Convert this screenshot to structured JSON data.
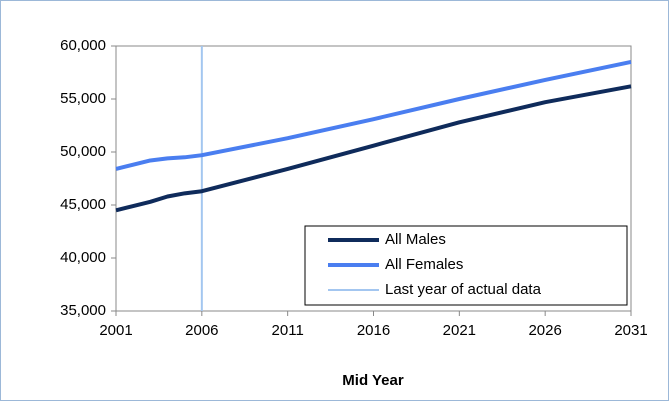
{
  "chart_data": {
    "type": "line",
    "x_label": "Mid Year",
    "x": [
      2001,
      2002,
      2003,
      2004,
      2005,
      2006,
      2011,
      2016,
      2021,
      2026,
      2031
    ],
    "series": [
      {
        "name": "All Males",
        "color": "#0f2b5b",
        "values": [
          44500,
          44900,
          45300,
          45800,
          46100,
          46300,
          48400,
          50600,
          52800,
          54700,
          56200
        ]
      },
      {
        "name": "All Females",
        "color": "#4a7ef0",
        "values": [
          48400,
          48800,
          49200,
          49400,
          49500,
          49700,
          51300,
          53100,
          55000,
          56800,
          58500
        ]
      }
    ],
    "reference_line": {
      "name": "Last year of actual data",
      "x": 2006,
      "color": "#a3c6f0"
    },
    "xlim": [
      2001,
      2031
    ],
    "xticks": [
      2001,
      2006,
      2011,
      2016,
      2021,
      2026,
      2031
    ],
    "ylim": [
      35000,
      60000
    ],
    "yticks": [
      {
        "value": 35000,
        "label": "35,000"
      },
      {
        "value": 40000,
        "label": "40,000"
      },
      {
        "value": 45000,
        "label": "45,000"
      },
      {
        "value": 50000,
        "label": "50,000"
      },
      {
        "value": 55000,
        "label": "55,000"
      },
      {
        "value": 60000,
        "label": "60,000"
      }
    ],
    "legend": "lower right"
  }
}
